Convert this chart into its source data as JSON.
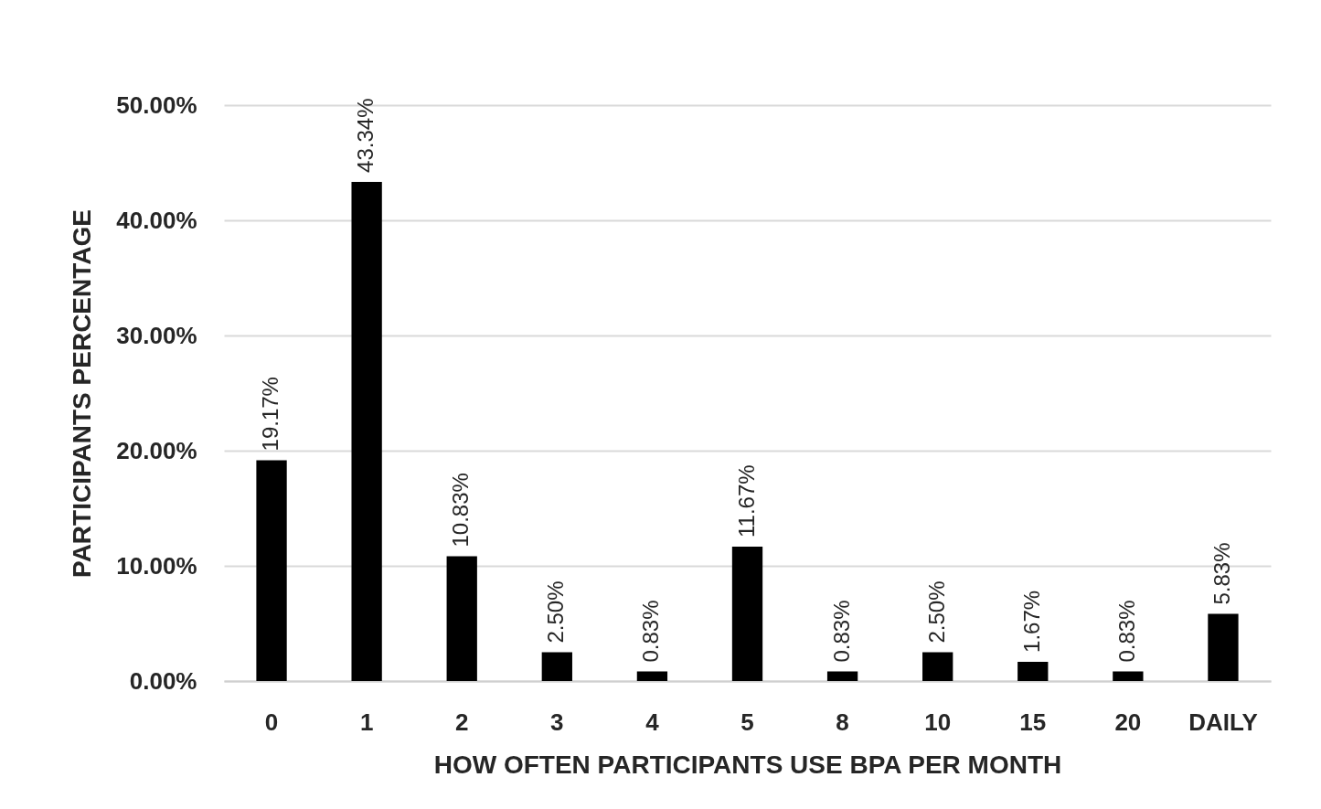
{
  "chart_data": {
    "type": "bar",
    "xlabel": "HOW OFTEN PARTICIPANTS USE BPA PER MONTH",
    "ylabel": "PARTICIPANTS PERCENTAGE",
    "categories": [
      "0",
      "1",
      "2",
      "3",
      "4",
      "5",
      "8",
      "10",
      "15",
      "20",
      "DAILY"
    ],
    "values": [
      19.17,
      43.34,
      10.83,
      2.5,
      0.83,
      11.67,
      0.83,
      2.5,
      1.67,
      0.83,
      5.83
    ],
    "value_labels": [
      "19.17%",
      "43.34%",
      "10.83%",
      "2.50%",
      "0.83%",
      "11.67%",
      "0.83%",
      "2.50%",
      "1.67%",
      "0.83%",
      "5.83%"
    ],
    "color": "#000000",
    "ylim": [
      0,
      50
    ],
    "yticks": [
      {
        "value": 0,
        "label": "0.00%"
      },
      {
        "value": 10,
        "label": "10.00%"
      },
      {
        "value": 20,
        "label": "20.00%"
      },
      {
        "value": 30,
        "label": "30.00%"
      },
      {
        "value": 40,
        "label": "40.00%"
      },
      {
        "value": 50,
        "label": "50.00%"
      }
    ],
    "grid": "y"
  }
}
